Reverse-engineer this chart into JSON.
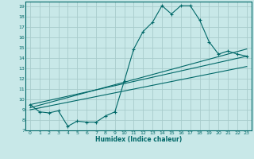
{
  "xlabel": "Humidex (Indice chaleur)",
  "bg_color": "#c8e8e8",
  "grid_color": "#a8cccc",
  "line_color": "#006868",
  "xlim": [
    -0.5,
    23.5
  ],
  "ylim": [
    7,
    19.5
  ],
  "yticks": [
    7,
    8,
    9,
    10,
    11,
    12,
    13,
    14,
    15,
    16,
    17,
    18,
    19
  ],
  "xticks": [
    0,
    1,
    2,
    3,
    4,
    5,
    6,
    7,
    8,
    9,
    10,
    11,
    12,
    13,
    14,
    15,
    16,
    17,
    18,
    19,
    20,
    21,
    22,
    23
  ],
  "series": [
    {
      "x": [
        0,
        1,
        2,
        3,
        4,
        5,
        6,
        7,
        8,
        9,
        10,
        11,
        12,
        13,
        14,
        15,
        16,
        17,
        18,
        19,
        20,
        21,
        22,
        23
      ],
      "y": [
        9.5,
        8.8,
        8.7,
        8.9,
        7.4,
        7.9,
        7.8,
        7.8,
        8.4,
        8.8,
        11.8,
        14.9,
        16.6,
        17.5,
        19.1,
        18.3,
        19.1,
        19.1,
        17.7,
        15.6,
        14.4,
        14.7,
        14.4,
        14.2
      ],
      "marker": "+"
    },
    {
      "x": [
        0,
        23
      ],
      "y": [
        9.5,
        14.2
      ],
      "marker": null
    },
    {
      "x": [
        0,
        23
      ],
      "y": [
        9.0,
        13.2
      ],
      "marker": null
    },
    {
      "x": [
        0,
        23
      ],
      "y": [
        9.2,
        14.9
      ],
      "marker": null
    }
  ]
}
